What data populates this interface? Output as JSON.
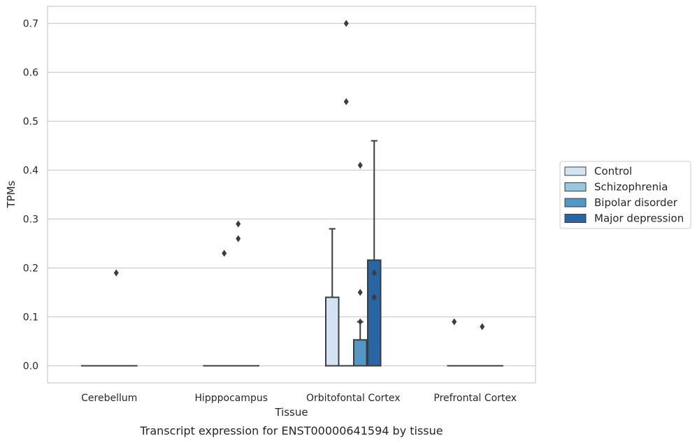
{
  "chart_data": {
    "type": "box",
    "title": "",
    "caption": "Transcript expression for ENST00000641594 by tissue",
    "xlabel": "Tissue",
    "ylabel": "TPMs",
    "ylim": [
      -0.035,
      0.735
    ],
    "yticks": [
      0.0,
      0.1,
      0.2,
      0.3,
      0.4,
      0.5,
      0.6,
      0.7
    ],
    "ytick_labels": [
      "0.0",
      "0.1",
      "0.2",
      "0.3",
      "0.4",
      "0.5",
      "0.6",
      "0.7"
    ],
    "grid": true,
    "legend_position": "right",
    "categories": [
      "Cerebellum",
      "Hipppocampus",
      "Orbitofontal Cortex",
      "Prefrontal Cortex"
    ],
    "series": [
      {
        "name": "Control",
        "color": "#d3e3f2",
        "boxes": [
          {
            "q1": 0,
            "median": 0,
            "q3": 0,
            "whisker_low": 0,
            "whisker_high": 0,
            "outliers": []
          },
          {
            "q1": 0,
            "median": 0,
            "q3": 0,
            "whisker_low": 0,
            "whisker_high": 0,
            "outliers": []
          },
          {
            "q1": 0,
            "median": 0,
            "q3": 0.14,
            "whisker_low": 0,
            "whisker_high": 0.28,
            "outliers": []
          },
          {
            "q1": 0,
            "median": 0,
            "q3": 0,
            "whisker_low": 0,
            "whisker_high": 0,
            "outliers": [
              0.09
            ]
          }
        ]
      },
      {
        "name": "Schizophrenia",
        "color": "#9ac6df",
        "boxes": [
          {
            "q1": 0,
            "median": 0,
            "q3": 0,
            "whisker_low": 0,
            "whisker_high": 0,
            "outliers": []
          },
          {
            "q1": 0,
            "median": 0,
            "q3": 0,
            "whisker_low": 0,
            "whisker_high": 0,
            "outliers": [
              0.23
            ]
          },
          {
            "q1": 0,
            "median": 0,
            "q3": 0,
            "whisker_low": 0,
            "whisker_high": 0,
            "outliers": [
              0.7,
              0.54
            ]
          },
          {
            "q1": 0,
            "median": 0,
            "q3": 0,
            "whisker_low": 0,
            "whisker_high": 0,
            "outliers": []
          }
        ]
      },
      {
        "name": "Bipolar disorder",
        "color": "#5297c6",
        "boxes": [
          {
            "q1": 0,
            "median": 0,
            "q3": 0,
            "whisker_low": 0,
            "whisker_high": 0,
            "outliers": [
              0.19
            ]
          },
          {
            "q1": 0,
            "median": 0,
            "q3": 0,
            "whisker_low": 0,
            "whisker_high": 0,
            "outliers": [
              0.29,
              0.26
            ]
          },
          {
            "q1": 0,
            "median": 0,
            "q3": 0.053,
            "whisker_low": 0,
            "whisker_high": 0.09,
            "outliers": [
              0.41,
              0.15,
              0.09
            ]
          },
          {
            "q1": 0,
            "median": 0,
            "q3": 0,
            "whisker_low": 0,
            "whisker_high": 0,
            "outliers": [
              0.08
            ]
          }
        ]
      },
      {
        "name": "Major depression",
        "color": "#2865a5",
        "boxes": [
          {
            "q1": 0,
            "median": 0,
            "q3": 0,
            "whisker_low": 0,
            "whisker_high": 0,
            "outliers": []
          },
          {
            "q1": 0,
            "median": 0,
            "q3": 0,
            "whisker_low": 0,
            "whisker_high": 0,
            "outliers": []
          },
          {
            "q1": 0,
            "median": 0,
            "q3": 0.216,
            "whisker_low": 0,
            "whisker_high": 0.46,
            "outliers": [
              0.19,
              0.14
            ]
          },
          {
            "q1": 0,
            "median": 0,
            "q3": 0,
            "whisker_low": 0,
            "whisker_high": 0,
            "outliers": []
          }
        ]
      }
    ]
  }
}
